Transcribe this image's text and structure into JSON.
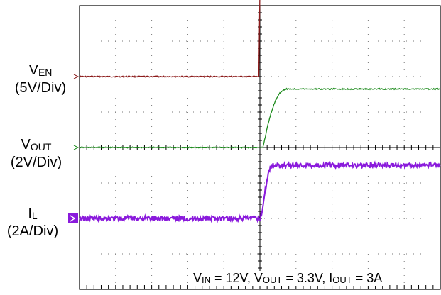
{
  "chart_data": {
    "type": "line",
    "title": "",
    "grid": true,
    "divisions": {
      "x": 10,
      "y": 8
    },
    "x_time_axis": {
      "unit": "div",
      "range": [
        0,
        10
      ],
      "trigger_at": 5
    },
    "channels": [
      {
        "id": "ven",
        "label_main": "V",
        "label_sub": "EN",
        "scale": "(5V/Div)",
        "color": "#8b1a1a",
        "ground_div": 6.0,
        "volts_per_div": 5,
        "x": [
          0,
          4.97,
          5.0,
          5.03,
          10
        ],
        "y": [
          0,
          0,
          12,
          12,
          12
        ]
      },
      {
        "id": "vout",
        "label_main": "V",
        "label_sub": "OUT",
        "scale": "(2V/Div)",
        "color": "#1a8a1a",
        "ground_div": 4.0,
        "volts_per_div": 2,
        "x": [
          0,
          5.08,
          5.15,
          5.22,
          5.32,
          5.42,
          5.52,
          5.62,
          5.72,
          10
        ],
        "y": [
          0,
          0,
          0.6,
          1.3,
          2.0,
          2.6,
          3.0,
          3.2,
          3.3,
          3.3
        ]
      },
      {
        "id": "il",
        "label_main": "I",
        "label_sub": "L",
        "scale": "(2A/Div)",
        "color": "#8a1adc",
        "ground_div": 2.0,
        "volts_per_div": 2,
        "x": [
          0,
          5.0,
          5.06,
          5.12,
          5.18,
          5.25,
          5.32,
          5.38,
          10
        ],
        "y": [
          0,
          0,
          0.4,
          1.2,
          2.0,
          2.7,
          3.0,
          3.0,
          3.0
        ]
      }
    ],
    "annotation": {
      "vin_main": "V",
      "vin_sub": "IN",
      "vin_value": " = 12V, ",
      "vout_main": "V",
      "vout_sub": "OUT",
      "vout_value": " = 3.3V, ",
      "iout_main": "I",
      "iout_sub": "OUT",
      "iout_value": " = 3A"
    }
  }
}
